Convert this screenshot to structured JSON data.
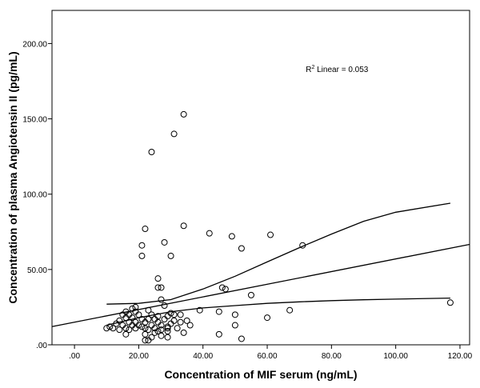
{
  "chart_data": {
    "type": "scatter",
    "title": "",
    "xlabel": "Concentration of MIF serum (ng/mL)",
    "ylabel": "Concentration of plasma Angiotensin II (pg/mL)",
    "xlim": [
      -7,
      123
    ],
    "ylim": [
      0,
      222
    ],
    "x_ticks": [
      0,
      20,
      40,
      60,
      80,
      100,
      120
    ],
    "x_tick_labels": [
      ".00",
      "20.00",
      "40.00",
      "60.00",
      "80.00",
      "100.00",
      "120.00"
    ],
    "y_ticks": [
      0,
      50,
      100,
      150,
      200
    ],
    "y_tick_labels": [
      ".00",
      "50.00",
      "100.00",
      "150.00",
      "200.00"
    ],
    "grid": false,
    "annotation": {
      "prefix": "R",
      "superscript": "2",
      "text": " Linear = 0.053",
      "x": 72,
      "y": 181
    },
    "fit_line": {
      "intercept": 15.0,
      "slope": 0.42,
      "x_range": [
        -7,
        123
      ]
    },
    "ci_upper": [
      [
        10,
        27
      ],
      [
        20,
        27.5
      ],
      [
        30,
        30
      ],
      [
        40,
        37
      ],
      [
        50,
        45.5
      ],
      [
        60,
        55
      ],
      [
        70,
        64.5
      ],
      [
        80,
        73.5
      ],
      [
        90,
        82
      ],
      [
        100,
        88
      ],
      [
        117,
        94
      ]
    ],
    "ci_lower": [
      [
        10,
        13
      ],
      [
        20,
        18
      ],
      [
        30,
        22
      ],
      [
        40,
        24.5
      ],
      [
        50,
        26
      ],
      [
        60,
        27.5
      ],
      [
        70,
        28.5
      ],
      [
        80,
        29.3
      ],
      [
        90,
        29.9
      ],
      [
        100,
        30.3
      ],
      [
        117,
        31
      ]
    ],
    "points": [
      [
        34,
        153
      ],
      [
        31,
        140
      ],
      [
        24,
        128
      ],
      [
        34,
        79
      ],
      [
        22,
        77
      ],
      [
        42,
        74
      ],
      [
        49,
        72
      ],
      [
        61,
        73
      ],
      [
        28,
        68
      ],
      [
        21,
        66
      ],
      [
        71,
        66
      ],
      [
        52,
        64
      ],
      [
        21,
        59
      ],
      [
        30,
        59
      ],
      [
        26,
        44
      ],
      [
        26,
        38
      ],
      [
        27,
        38
      ],
      [
        46,
        38
      ],
      [
        47,
        37
      ],
      [
        55,
        33
      ],
      [
        27,
        30
      ],
      [
        28,
        26
      ],
      [
        19,
        25
      ],
      [
        18,
        24
      ],
      [
        16,
        22
      ],
      [
        19,
        22
      ],
      [
        23,
        23
      ],
      [
        39,
        23
      ],
      [
        45,
        22
      ],
      [
        67,
        23
      ],
      [
        15,
        20
      ],
      [
        17,
        20
      ],
      [
        20,
        20
      ],
      [
        24,
        20
      ],
      [
        30,
        21
      ],
      [
        31,
        20
      ],
      [
        33,
        20
      ],
      [
        26,
        19
      ],
      [
        29,
        19
      ],
      [
        50,
        20
      ],
      [
        16,
        18
      ],
      [
        18,
        18
      ],
      [
        21,
        17
      ],
      [
        23,
        17
      ],
      [
        25,
        17
      ],
      [
        28,
        17
      ],
      [
        31,
        16
      ],
      [
        35,
        16
      ],
      [
        60,
        18
      ],
      [
        14,
        16
      ],
      [
        17,
        15
      ],
      [
        19,
        15
      ],
      [
        22,
        15
      ],
      [
        26,
        15
      ],
      [
        30,
        14
      ],
      [
        33,
        15
      ],
      [
        13,
        14
      ],
      [
        15,
        13
      ],
      [
        18,
        13
      ],
      [
        20,
        13
      ],
      [
        24,
        13
      ],
      [
        27,
        13
      ],
      [
        29,
        12
      ],
      [
        36,
        13
      ],
      [
        50,
        13
      ],
      [
        11,
        12
      ],
      [
        12,
        11
      ],
      [
        16,
        11
      ],
      [
        19,
        11
      ],
      [
        21,
        12
      ],
      [
        22,
        11
      ],
      [
        25,
        11
      ],
      [
        27,
        10
      ],
      [
        29,
        11
      ],
      [
        32,
        11
      ],
      [
        10,
        11
      ],
      [
        14,
        10
      ],
      [
        17,
        10
      ],
      [
        23,
        10
      ],
      [
        26,
        9
      ],
      [
        29,
        9
      ],
      [
        34,
        8
      ],
      [
        16,
        7
      ],
      [
        22,
        7
      ],
      [
        25,
        8
      ],
      [
        27,
        6
      ],
      [
        45,
        7
      ],
      [
        24,
        5
      ],
      [
        29,
        5
      ],
      [
        22,
        3
      ],
      [
        23,
        3
      ],
      [
        52,
        4
      ],
      [
        117,
        28
      ]
    ]
  }
}
